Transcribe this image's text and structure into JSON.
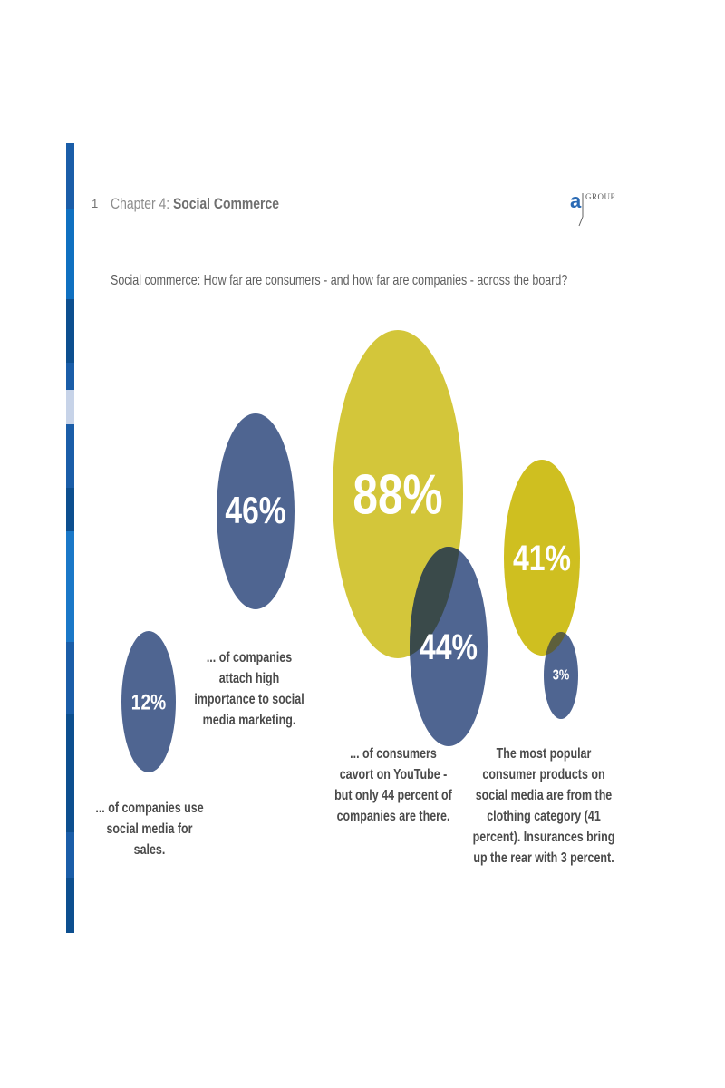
{
  "header": {
    "page_number": "1",
    "chapter_prefix": "Chapter 4:",
    "chapter_name": "Social Commerce",
    "logo_letter": "a",
    "logo_word": "GROUP"
  },
  "colors": {
    "navy": "#4f6591",
    "olive": "#d3c63a",
    "olive_dark": "#cfbf20",
    "overlap": "#3a4a4a",
    "sidebar": [
      "#1a5da8",
      "#0f70c0",
      "#0d4f8f",
      "#1a5da8",
      "#c7d3e8",
      "#1a5da8",
      "#0d4f8f",
      "#1a78c8",
      "#1a5da8",
      "#0d4f8f",
      "#1a5da8",
      "#0d4f8f"
    ]
  },
  "chart_data": {
    "type": "bubble",
    "title": "Social commerce: How far are consumers - and how far are companies - across the board?",
    "series": [
      {
        "label": "12%",
        "value": 12,
        "color": "navy"
      },
      {
        "label": "46%",
        "value": 46,
        "color": "navy"
      },
      {
        "label": "88%",
        "value": 88,
        "color": "olive"
      },
      {
        "label": "44%",
        "value": 44,
        "color": "navy"
      },
      {
        "label": "41%",
        "value": 41,
        "color": "olive_dark"
      },
      {
        "label": "3%",
        "value": 3,
        "color": "navy"
      }
    ],
    "captions": [
      "... of companies use social media for sales.",
      "... of companies attach high importance to social media marketing.",
      "... of consumers cavort on YouTube - but only 44 percent of companies are there.",
      "The most popular consumer products on social media are from the clothing category (41 percent). Insurances bring up the rear with 3 percent."
    ]
  }
}
